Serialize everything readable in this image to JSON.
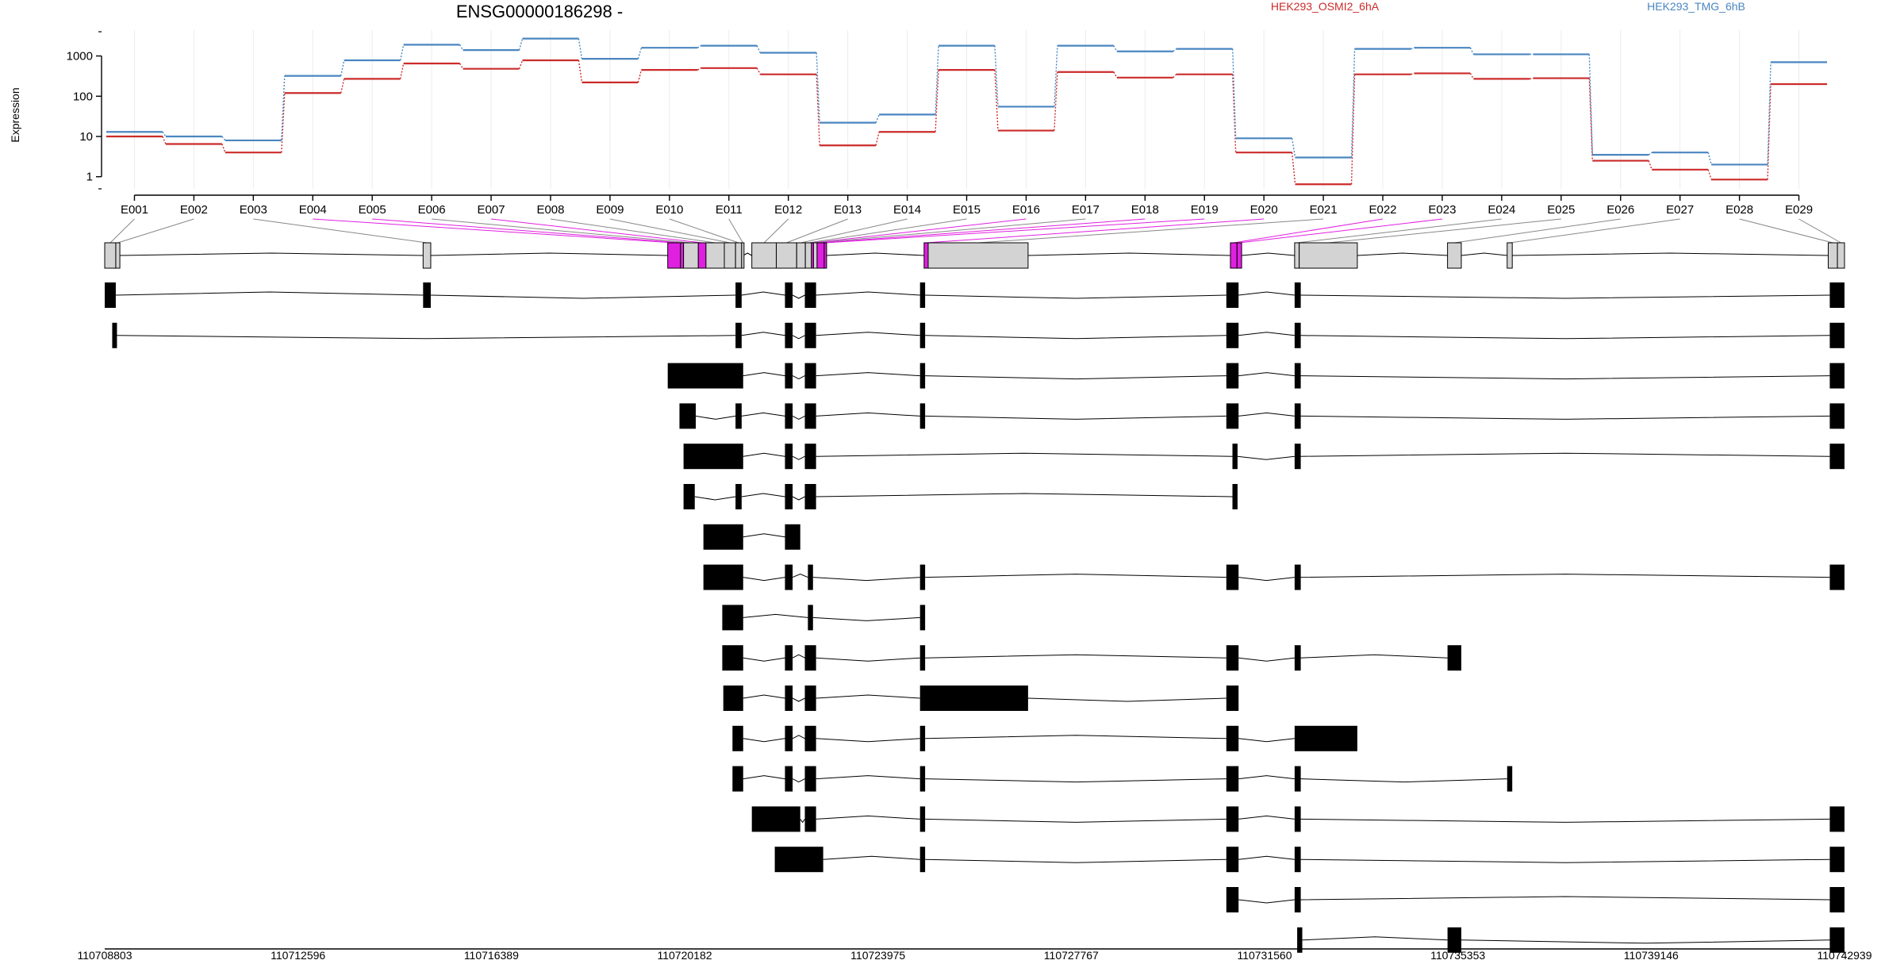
{
  "gene_title": "ENSG00000186298 -",
  "colors": {
    "osmi": "#cc2b2b",
    "tmg": "#4a86c0",
    "exon_fill": "#d3d3d3",
    "highlight": "#e020e0",
    "transcript": "#000000",
    "axis": "#000000"
  },
  "chart_data": {
    "type": "line",
    "title": "ENSG00000186298 -",
    "ylabel": "Expression",
    "yscale": "log10",
    "ylim": [
      0.5,
      4000
    ],
    "y_ticks": [
      1,
      10,
      100,
      1000
    ],
    "y_tick_labels": [
      "1",
      "10",
      "100",
      "1000"
    ],
    "categories": [
      "E001",
      "E002",
      "E003",
      "E004",
      "E005",
      "E006",
      "E007",
      "E008",
      "E009",
      "E010",
      "E011",
      "E012",
      "E013",
      "E014",
      "E015",
      "E016",
      "E017",
      "E018",
      "E019",
      "E020",
      "E021",
      "E022",
      "E023",
      "E024",
      "E025",
      "E026",
      "E027",
      "E028",
      "E029"
    ],
    "legend": [
      "HEK293_OSMI2_6hA",
      "HEK293_TMG_6hB"
    ],
    "series": [
      {
        "name": "HEK293_OSMI2_6hA",
        "values": [
          10,
          6.5,
          4,
          120,
          270,
          650,
          480,
          780,
          220,
          450,
          500,
          350,
          6,
          13,
          450,
          14,
          400,
          290,
          350,
          4,
          0.65,
          350,
          370,
          270,
          280,
          2.5,
          1.5,
          0.85,
          200
        ]
      },
      {
        "name": "HEK293_TMG_6hB",
        "values": [
          13,
          10,
          8,
          320,
          780,
          1900,
          1400,
          2700,
          850,
          1600,
          1800,
          1200,
          22,
          35,
          1800,
          55,
          1800,
          1300,
          1500,
          9,
          3,
          1500,
          1600,
          1100,
          1100,
          3.5,
          4,
          2,
          700
        ]
      }
    ]
  },
  "gene_model": {
    "start": 110708803,
    "end": 110742939,
    "coord_ticks": [
      "110708803",
      "110712596",
      "110716389",
      "110720182",
      "110723975",
      "110727767",
      "110731560",
      "110735353",
      "110739146",
      "110742939"
    ],
    "exon_bins": [
      {
        "id": "E001",
        "start": 110708803,
        "end": 110709020,
        "highlight": false
      },
      {
        "id": "E002",
        "start": 110709020,
        "end": 110709100,
        "highlight": false
      },
      {
        "id": "E003",
        "start": 110715050,
        "end": 110715200,
        "highlight": false
      },
      {
        "id": "E004",
        "start": 110719850,
        "end": 110720100,
        "highlight": true
      },
      {
        "id": "E005",
        "start": 110720100,
        "end": 110720160,
        "highlight": true
      },
      {
        "id": "E006",
        "start": 110720160,
        "end": 110720450,
        "highlight": false
      },
      {
        "id": "E007",
        "start": 110720450,
        "end": 110720600,
        "highlight": true
      },
      {
        "id": "E008",
        "start": 110720600,
        "end": 110720960,
        "highlight": false
      },
      {
        "id": "E009",
        "start": 110720960,
        "end": 110721180,
        "highlight": false
      },
      {
        "id": "E010",
        "start": 110721180,
        "end": 110721300,
        "highlight": false
      },
      {
        "id": "E011",
        "start": 110721300,
        "end": 110721330,
        "highlight": false
      },
      {
        "id": "E012",
        "start": 110721500,
        "end": 110721980,
        "highlight": false
      },
      {
        "id": "E013",
        "start": 110721980,
        "end": 110722380,
        "highlight": false
      },
      {
        "id": "E014",
        "start": 110722380,
        "end": 110722550,
        "highlight": false
      },
      {
        "id": "E015",
        "start": 110722550,
        "end": 110722670,
        "highlight": false
      },
      {
        "id": "E016",
        "start": 110722670,
        "end": 110722710,
        "highlight": true
      },
      {
        "id": "E017",
        "start": 110722710,
        "end": 110722780,
        "highlight": false
      },
      {
        "id": "E018",
        "start": 110722780,
        "end": 110722920,
        "highlight": true
      },
      {
        "id": "E019",
        "start": 110722920,
        "end": 110722960,
        "highlight": true
      },
      {
        "id": "E020",
        "start": 110724880,
        "end": 110724960,
        "highlight": true
      },
      {
        "id": "E021",
        "start": 110724960,
        "end": 110726920,
        "highlight": false
      },
      {
        "id": "E022",
        "start": 110730890,
        "end": 110731020,
        "highlight": true
      },
      {
        "id": "E023",
        "start": 110731020,
        "end": 110731110,
        "highlight": true
      },
      {
        "id": "E024",
        "start": 110732150,
        "end": 110732240,
        "highlight": false
      },
      {
        "id": "E025",
        "start": 110732240,
        "end": 110733380,
        "highlight": false
      },
      {
        "id": "E026",
        "start": 110735150,
        "end": 110735420,
        "highlight": false
      },
      {
        "id": "E027",
        "start": 110736320,
        "end": 110736420,
        "highlight": false
      },
      {
        "id": "E028",
        "start": 110742620,
        "end": 110742800,
        "highlight": false
      },
      {
        "id": "E029",
        "start": 110742800,
        "end": 110742939,
        "highlight": false
      }
    ],
    "transcripts": [
      [
        [
          110708803,
          110709020
        ],
        [
          110715050,
          110715200
        ],
        [
          110721180,
          110721300
        ],
        [
          110722150,
          110722300
        ],
        [
          110722540,
          110722760
        ],
        [
          110724800,
          110724900
        ],
        [
          110730810,
          110731050
        ],
        [
          110732150,
          110732270
        ],
        [
          110742650,
          110742939
        ]
      ],
      [
        [
          110708950,
          110709030
        ],
        [
          110721180,
          110721300
        ],
        [
          110722150,
          110722300
        ],
        [
          110722540,
          110722760
        ],
        [
          110724800,
          110724900
        ],
        [
          110730810,
          110731050
        ],
        [
          110732150,
          110732270
        ],
        [
          110742650,
          110742939
        ]
      ],
      [
        [
          110719850,
          110721330
        ],
        [
          110722150,
          110722300
        ],
        [
          110722540,
          110722760
        ],
        [
          110724800,
          110724900
        ],
        [
          110730810,
          110731050
        ],
        [
          110732150,
          110732270
        ],
        [
          110742650,
          110742939
        ]
      ],
      [
        [
          110720080,
          110720400
        ],
        [
          110721180,
          110721300
        ],
        [
          110722150,
          110722300
        ],
        [
          110722540,
          110722760
        ],
        [
          110724800,
          110724900
        ],
        [
          110730810,
          110731050
        ],
        [
          110732150,
          110732270
        ],
        [
          110742650,
          110742939
        ]
      ],
      [
        [
          110720160,
          110721330
        ],
        [
          110722150,
          110722300
        ],
        [
          110722540,
          110722760
        ],
        [
          110730930,
          110731030
        ],
        [
          110732150,
          110732270
        ],
        [
          110742650,
          110742939
        ]
      ],
      [
        [
          110720160,
          110720380
        ],
        [
          110721180,
          110721300
        ],
        [
          110722150,
          110722300
        ],
        [
          110722540,
          110722760
        ],
        [
          110730930,
          110731030
        ]
      ],
      [
        [
          110720550,
          110721330
        ],
        [
          110722150,
          110722450
        ]
      ],
      [
        [
          110720550,
          110721330
        ],
        [
          110722150,
          110722300
        ],
        [
          110722600,
          110722700
        ],
        [
          110724800,
          110724900
        ],
        [
          110730810,
          110731050
        ],
        [
          110732150,
          110732270
        ],
        [
          110742650,
          110742939
        ]
      ],
      [
        [
          110720920,
          110721330
        ],
        [
          110722600,
          110722700
        ],
        [
          110724800,
          110724900
        ]
      ],
      [
        [
          110720920,
          110721330
        ],
        [
          110722150,
          110722300
        ],
        [
          110722540,
          110722760
        ],
        [
          110724800,
          110724900
        ],
        [
          110730810,
          110731050
        ],
        [
          110732150,
          110732270
        ],
        [
          110735150,
          110735420
        ]
      ],
      [
        [
          110720940,
          110721330
        ],
        [
          110722150,
          110722300
        ],
        [
          110722540,
          110722760
        ],
        [
          110724800,
          110726920
        ],
        [
          110730810,
          110731050
        ]
      ],
      [
        [
          110721120,
          110721330
        ],
        [
          110722150,
          110722300
        ],
        [
          110722540,
          110722760
        ],
        [
          110724800,
          110724900
        ],
        [
          110730810,
          110731050
        ],
        [
          110732150,
          110733380
        ]
      ],
      [
        [
          110721120,
          110721330
        ],
        [
          110722150,
          110722300
        ],
        [
          110722540,
          110722760
        ],
        [
          110724800,
          110724900
        ],
        [
          110730810,
          110731050
        ],
        [
          110732150,
          110732270
        ],
        [
          110736320,
          110736420
        ]
      ],
      [
        [
          110721500,
          110722450
        ],
        [
          110722540,
          110722760
        ],
        [
          110724800,
          110724900
        ],
        [
          110730810,
          110731050
        ],
        [
          110732150,
          110732270
        ],
        [
          110742650,
          110742939
        ]
      ],
      [
        [
          110721950,
          110722900
        ],
        [
          110724800,
          110724900
        ],
        [
          110730810,
          110731050
        ],
        [
          110732150,
          110732270
        ],
        [
          110742650,
          110742939
        ]
      ],
      [
        [
          110730810,
          110731050
        ],
        [
          110732150,
          110732270
        ],
        [
          110742650,
          110742939
        ]
      ],
      [
        [
          110732200,
          110732300
        ],
        [
          110735150,
          110735420
        ],
        [
          110742650,
          110742939
        ]
      ]
    ]
  }
}
